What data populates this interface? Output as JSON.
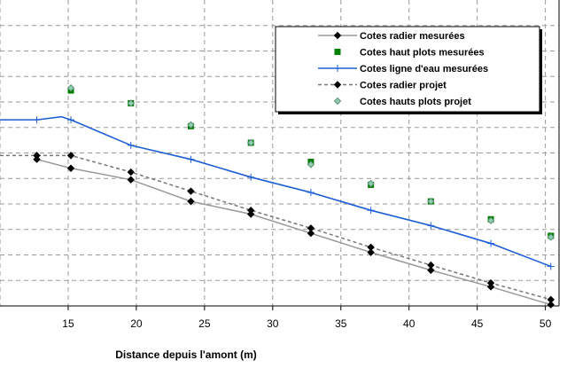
{
  "chart_data": {
    "type": "line",
    "xlabel": "Distance depuis l'amont (m)",
    "ylabel": "",
    "xlim": [
      10,
      51
    ],
    "ylim": [
      0,
      12
    ],
    "x_ticks": [
      15,
      20,
      25,
      30,
      35,
      40,
      45,
      50
    ],
    "grid": true,
    "legend_position": "top-right",
    "series": [
      {
        "name": "Cotes radier mesurées",
        "style": "solid-diamond",
        "color": "#999999",
        "marker_color": "#000000",
        "x": [
          12.7,
          15.2,
          19.6,
          24.0,
          28.4,
          32.8,
          37.2,
          41.6,
          46.0,
          50.4
        ],
        "y": [
          5.75,
          5.4,
          4.95,
          4.1,
          3.6,
          2.85,
          2.1,
          1.4,
          0.75,
          0.05
        ]
      },
      {
        "name": "Cotes haut plots mesurées",
        "style": "square",
        "color": "#008000",
        "x": [
          15.2,
          19.6,
          24.0,
          28.4,
          32.8,
          37.2,
          41.6,
          46.0,
          50.4
        ],
        "y": [
          8.45,
          7.95,
          7.05,
          6.4,
          5.65,
          4.75,
          4.1,
          3.4,
          2.75
        ]
      },
      {
        "name": "Cotes ligne d'eau mesurées",
        "style": "solid-plus",
        "color": "#1f5fd6",
        "marker_color": "#1f5fd6",
        "x": [
          10.0,
          12.7,
          14.5,
          15.2,
          19.6,
          24.0,
          28.4,
          32.8,
          37.2,
          41.6,
          46.0,
          50.4
        ],
        "y": [
          7.3,
          7.3,
          7.42,
          7.3,
          6.3,
          5.75,
          5.05,
          4.45,
          3.75,
          3.15,
          2.45,
          1.55
        ]
      },
      {
        "name": "Cotes radier projet",
        "style": "dashed-diamond",
        "color": "#777777",
        "marker_color": "#000000",
        "x": [
          10.0,
          12.7,
          15.2,
          19.6,
          24.0,
          28.4,
          32.8,
          37.2,
          41.6,
          46.0,
          50.4
        ],
        "y": [
          5.9,
          5.9,
          5.9,
          5.25,
          4.5,
          3.75,
          3.05,
          2.3,
          1.6,
          0.9,
          0.25
        ]
      },
      {
        "name": "Cotes hauts plots projet",
        "style": "light-diamond",
        "color": "#8fcfb0",
        "x": [
          15.2,
          19.6,
          24.0,
          28.4,
          32.8,
          37.2,
          41.6,
          46.0,
          50.4
        ],
        "y": [
          8.55,
          7.95,
          7.1,
          6.4,
          5.55,
          4.8,
          4.1,
          3.35,
          2.7
        ]
      }
    ]
  }
}
